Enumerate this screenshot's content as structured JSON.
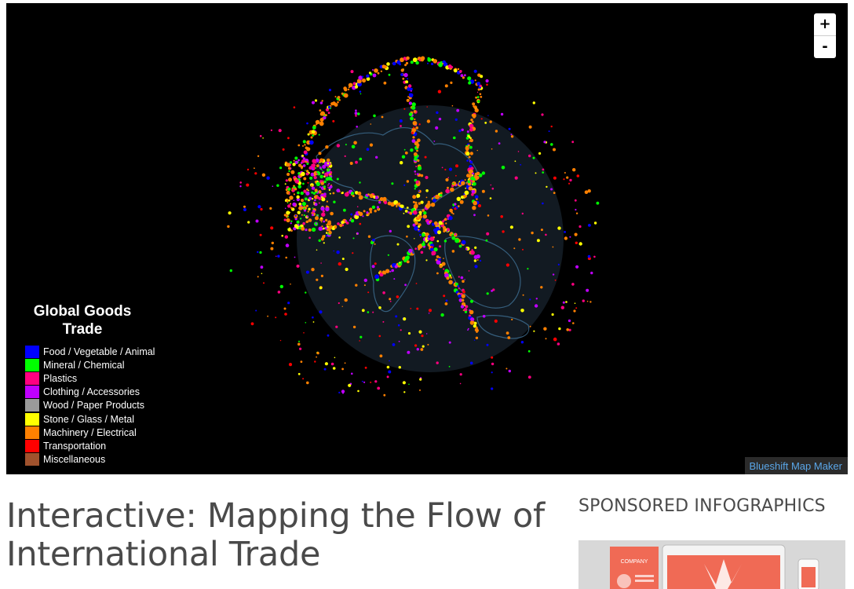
{
  "map": {
    "legend": {
      "title": "Global Goods Trade",
      "items": [
        {
          "label": "Food / Vegetable / Animal",
          "color": "#0000ff"
        },
        {
          "label": "Mineral / Chemical",
          "color": "#00ff00"
        },
        {
          "label": "Plastics",
          "color": "#ff0080"
        },
        {
          "label": "Clothing / Accessories",
          "color": "#c000ff"
        },
        {
          "label": "Wood / Paper Products",
          "color": "#9a9a9a"
        },
        {
          "label": "Stone / Glass / Metal",
          "color": "#ffff00"
        },
        {
          "label": "Machinery / Electrical",
          "color": "#ff8000"
        },
        {
          "label": "Transportation",
          "color": "#ff0000"
        },
        {
          "label": "Miscellaneous",
          "color": "#a0522d"
        }
      ]
    },
    "zoom": {
      "in_label": "+",
      "out_label": "-"
    },
    "credit": "Blueshift Map Maker",
    "colors": {
      "background": "#000000",
      "globe": "#121a22",
      "coast": "#3f6f93"
    }
  },
  "article": {
    "title": "Interactive: Mapping the Flow of International Trade"
  },
  "sidebar": {
    "heading": "SPONSORED INFOGRAPHICS",
    "thumb_word": "COMPANY"
  }
}
